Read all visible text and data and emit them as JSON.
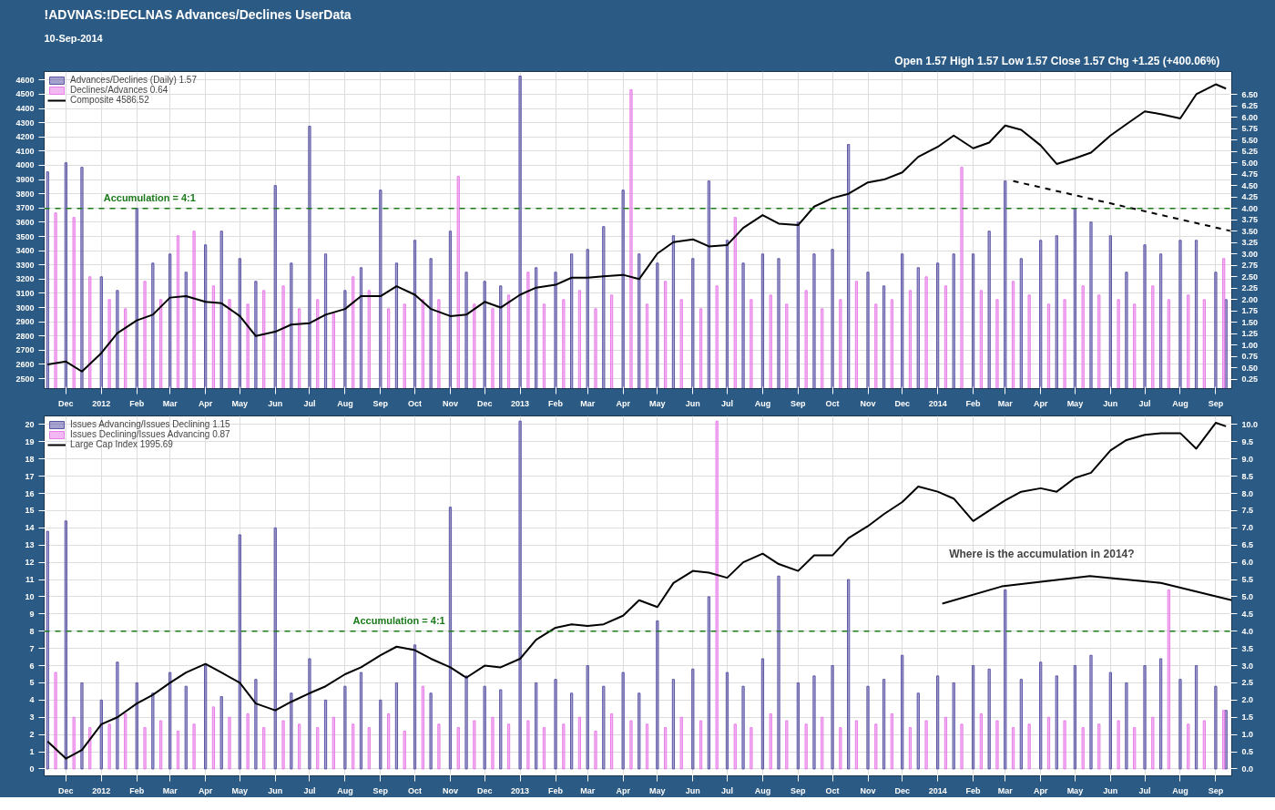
{
  "chart_data": [
    {
      "type": "bar",
      "title": "!ADVNAS:!DECLNAS  Advances/Declines  UserData",
      "subtitle": "10-Sep-2014",
      "annotations": [
        "Open 1.57  High 1.57  Low 1.57  Close 1.57  Chg +1.25 (+400.06%)"
      ],
      "xlim": [
        "2011-11-12",
        "2014-09-15"
      ],
      "xticks": [
        {
          "value": "2011-12-01",
          "label": "Dec"
        },
        {
          "value": "2012-01-01",
          "label": "2012"
        },
        {
          "value": "2012-02-01",
          "label": "Feb"
        },
        {
          "value": "2012-03-01",
          "label": "Mar"
        },
        {
          "value": "2012-04-01",
          "label": "Apr"
        },
        {
          "value": "2012-05-01",
          "label": "May"
        },
        {
          "value": "2012-06-01",
          "label": "Jun"
        },
        {
          "value": "2012-07-01",
          "label": "Jul"
        },
        {
          "value": "2012-08-01",
          "label": "Aug"
        },
        {
          "value": "2012-09-01",
          "label": "Sep"
        },
        {
          "value": "2012-10-01",
          "label": "Oct"
        },
        {
          "value": "2012-11-01",
          "label": "Nov"
        },
        {
          "value": "2012-12-01",
          "label": "Dec"
        },
        {
          "value": "2013-01-01",
          "label": "2013"
        },
        {
          "value": "2013-02-01",
          "label": "Feb"
        },
        {
          "value": "2013-03-01",
          "label": "Mar"
        },
        {
          "value": "2013-04-01",
          "label": "Apr"
        },
        {
          "value": "2013-05-01",
          "label": "May"
        },
        {
          "value": "2013-06-01",
          "label": "Jun"
        },
        {
          "value": "2013-07-01",
          "label": "Jul"
        },
        {
          "value": "2013-08-01",
          "label": "Aug"
        },
        {
          "value": "2013-09-01",
          "label": "Sep"
        },
        {
          "value": "2013-10-01",
          "label": "Oct"
        },
        {
          "value": "2013-11-01",
          "label": "Nov"
        },
        {
          "value": "2013-12-01",
          "label": "Dec"
        },
        {
          "value": "2014-01-01",
          "label": "2014"
        },
        {
          "value": "2014-02-01",
          "label": "Feb"
        },
        {
          "value": "2014-03-01",
          "label": "Mar"
        },
        {
          "value": "2014-04-01",
          "label": "Apr"
        },
        {
          "value": "2014-05-01",
          "label": "May"
        },
        {
          "value": "2014-06-01",
          "label": "Jun"
        },
        {
          "value": "2014-07-01",
          "label": "Jul"
        },
        {
          "value": "2014-08-01",
          "label": "Aug"
        },
        {
          "value": "2014-09-01",
          "label": "Sep"
        }
      ],
      "ylim": [
        2430,
        4660
      ],
      "yticks": [
        2500,
        2600,
        2700,
        2800,
        2900,
        3000,
        3100,
        3200,
        3300,
        3400,
        3500,
        3600,
        3700,
        3800,
        3900,
        4000,
        4100,
        4200,
        4300,
        4400,
        4500,
        4600
      ],
      "y2lim": [
        0.05,
        7.0
      ],
      "y2ticks": [
        {
          "value": 0.25,
          "label": "0.25"
        },
        {
          "value": 0.5,
          "label": "0.50"
        },
        {
          "value": 0.75,
          "label": "0.75"
        },
        {
          "value": 1.0,
          "label": "1.00"
        },
        {
          "value": 1.25,
          "label": "1.25"
        },
        {
          "value": 1.5,
          "label": "1.50"
        },
        {
          "value": 1.75,
          "label": "1.75"
        },
        {
          "value": 2.0,
          "label": "2.00"
        },
        {
          "value": 2.25,
          "label": "2.25"
        },
        {
          "value": 2.5,
          "label": "2.50"
        },
        {
          "value": 2.75,
          "label": "2.75"
        },
        {
          "value": 3.0,
          "label": "3.00"
        },
        {
          "value": 3.25,
          "label": "3.25"
        },
        {
          "value": 3.5,
          "label": "3.50"
        },
        {
          "value": 3.75,
          "label": "3.75"
        },
        {
          "value": 4.0,
          "label": "4.00"
        },
        {
          "value": 4.25,
          "label": "4.25"
        },
        {
          "value": 4.5,
          "label": "4.50"
        },
        {
          "value": 4.75,
          "label": "4.75"
        },
        {
          "value": 5.0,
          "label": "5.00"
        },
        {
          "value": 5.25,
          "label": "5.25"
        },
        {
          "value": 5.5,
          "label": "5.50"
        },
        {
          "value": 5.75,
          "label": "5.75"
        },
        {
          "value": 6.0,
          "label": "6.00"
        },
        {
          "value": 6.25,
          "label": "6.25"
        },
        {
          "value": 6.5,
          "label": "6.50"
        }
      ],
      "grid": true,
      "legend": "top left",
      "x": [
        "2011-11-15",
        "2011-12-01",
        "2011-12-15",
        "2012-01-01",
        "2012-01-15",
        "2012-02-01",
        "2012-02-15",
        "2012-03-01",
        "2012-03-15",
        "2012-04-01",
        "2012-04-15",
        "2012-05-01",
        "2012-05-15",
        "2012-06-01",
        "2012-06-15",
        "2012-07-01",
        "2012-07-15",
        "2012-08-01",
        "2012-08-15",
        "2012-09-01",
        "2012-09-15",
        "2012-10-01",
        "2012-10-15",
        "2012-11-01",
        "2012-11-15",
        "2012-12-01",
        "2012-12-15",
        "2013-01-01",
        "2013-01-15",
        "2013-02-01",
        "2013-02-15",
        "2013-03-01",
        "2013-03-15",
        "2013-04-01",
        "2013-04-15",
        "2013-05-01",
        "2013-05-15",
        "2013-06-01",
        "2013-06-15",
        "2013-07-01",
        "2013-07-15",
        "2013-08-01",
        "2013-08-15",
        "2013-09-01",
        "2013-09-15",
        "2013-10-01",
        "2013-10-15",
        "2013-11-01",
        "2013-11-15",
        "2013-12-01",
        "2013-12-15",
        "2014-01-01",
        "2014-01-15",
        "2014-02-01",
        "2014-02-15",
        "2014-03-01",
        "2014-03-15",
        "2014-04-01",
        "2014-04-15",
        "2014-05-01",
        "2014-05-15",
        "2014-06-01",
        "2014-06-15",
        "2014-07-01",
        "2014-07-15",
        "2014-08-01",
        "2014-08-15",
        "2014-09-01",
        "2014-09-10"
      ],
      "ref_lines": [
        {
          "axis": "y2",
          "value": 4.0,
          "label": "Accumulation = 4:1",
          "color": "#1a7a1a",
          "line_style": "dashed"
        }
      ],
      "series": [
        {
          "name": "Advances/Declines (Daily) 1.57",
          "axis": "y2",
          "color": "#5b55a6",
          "values": [
            4.8,
            5.0,
            4.9,
            2.5,
            2.2,
            4.0,
            2.8,
            3.0,
            2.6,
            3.2,
            3.5,
            2.9,
            2.4,
            4.5,
            2.8,
            5.8,
            3.0,
            2.2,
            2.7,
            4.4,
            2.8,
            3.3,
            2.9,
            3.5,
            2.6,
            2.4,
            2.3,
            6.9,
            2.7,
            2.6,
            3.0,
            3.1,
            3.6,
            4.4,
            3.0,
            2.8,
            3.4,
            2.9,
            4.6,
            3.3,
            2.8,
            3.0,
            2.9,
            3.7,
            3.0,
            3.1,
            5.4,
            2.6,
            2.3,
            3.0,
            2.7,
            2.8,
            3.0,
            3.0,
            3.5,
            4.6,
            2.9,
            3.3,
            3.4,
            4.0,
            3.7,
            3.4,
            2.6,
            3.2,
            3.0,
            3.3,
            3.3,
            2.6,
            2.0
          ]
        },
        {
          "name": "Declines/Advances 0.64",
          "axis": "y2",
          "color": "#e87de8",
          "x": [
            "2011-11-22",
            "2011-12-08",
            "2011-12-22",
            "2012-01-08",
            "2012-01-22",
            "2012-02-08",
            "2012-02-22",
            "2012-03-08",
            "2012-03-22",
            "2012-04-08",
            "2012-04-22",
            "2012-05-08",
            "2012-05-22",
            "2012-06-08",
            "2012-06-22",
            "2012-07-08",
            "2012-07-22",
            "2012-08-08",
            "2012-08-22",
            "2012-09-08",
            "2012-09-22",
            "2012-10-08",
            "2012-10-22",
            "2012-11-08",
            "2012-11-22",
            "2012-12-08",
            "2012-12-22",
            "2013-01-08",
            "2013-01-22",
            "2013-02-08",
            "2013-02-22",
            "2013-03-08",
            "2013-03-22",
            "2013-04-08",
            "2013-04-22",
            "2013-05-08",
            "2013-05-22",
            "2013-06-08",
            "2013-06-22",
            "2013-07-08",
            "2013-07-22",
            "2013-08-08",
            "2013-08-22",
            "2013-09-08",
            "2013-09-22",
            "2013-10-08",
            "2013-10-22",
            "2013-11-08",
            "2013-11-22",
            "2013-12-08",
            "2013-12-22",
            "2014-01-08",
            "2014-01-22",
            "2014-02-08",
            "2014-02-22",
            "2014-03-08",
            "2014-03-22",
            "2014-04-08",
            "2014-04-22",
            "2014-05-08",
            "2014-05-22",
            "2014-06-08",
            "2014-06-22",
            "2014-07-08",
            "2014-07-22",
            "2014-08-08",
            "2014-08-22",
            "2014-09-08"
          ],
          "values": [
            3.9,
            3.8,
            2.5,
            2.0,
            1.8,
            2.4,
            2.0,
            3.4,
            3.5,
            2.3,
            2.0,
            1.9,
            2.2,
            2.3,
            1.8,
            2.0,
            1.7,
            2.5,
            2.2,
            1.8,
            1.9,
            2.0,
            2.0,
            4.7,
            1.9,
            1.8,
            2.1,
            2.6,
            1.9,
            2.0,
            2.2,
            1.8,
            2.1,
            6.6,
            1.9,
            2.4,
            2.0,
            1.8,
            2.3,
            3.8,
            2.0,
            2.1,
            1.9,
            2.2,
            1.8,
            2.0,
            2.4,
            1.9,
            2.0,
            2.2,
            2.5,
            2.3,
            4.9,
            2.2,
            2.0,
            2.4,
            2.1,
            1.9,
            2.0,
            2.3,
            2.1,
            2.0,
            1.9,
            2.3,
            2.0,
            2.1,
            2.0,
            2.9
          ]
        },
        {
          "name": "Composite 4586.52",
          "type": "line",
          "axis": "y",
          "color": "#000000",
          "values": [
            2600,
            2620,
            2550,
            2680,
            2820,
            2910,
            2950,
            3070,
            3080,
            3040,
            3030,
            2940,
            2800,
            2830,
            2880,
            2890,
            2950,
            2990,
            3080,
            3080,
            3150,
            3090,
            2990,
            2940,
            2950,
            3040,
            3000,
            3090,
            3140,
            3160,
            3210,
            3210,
            3220,
            3230,
            3200,
            3380,
            3460,
            3480,
            3430,
            3440,
            3560,
            3650,
            3590,
            3580,
            3710,
            3770,
            3800,
            3880,
            3900,
            3950,
            4060,
            4130,
            4210,
            4120,
            4160,
            4280,
            4250,
            4140,
            4010,
            4050,
            4090,
            4210,
            4290,
            4380,
            4360,
            4330,
            4500,
            4570,
            4540
          ]
        },
        {
          "type": "line",
          "axis": "y2",
          "color": "#000000",
          "line_style": "dashed",
          "x": [
            "2014-03-08",
            "2014-09-15"
          ],
          "values": [
            4.6,
            3.5
          ]
        }
      ]
    },
    {
      "type": "bar",
      "annotations": [
        "Where is the accumulation in 2014?"
      ],
      "xlim": [
        "2011-11-12",
        "2014-09-15"
      ],
      "xticks": [
        {
          "value": "2011-12-01",
          "label": "Dec"
        },
        {
          "value": "2012-01-01",
          "label": "2012"
        },
        {
          "value": "2012-02-01",
          "label": "Feb"
        },
        {
          "value": "2012-03-01",
          "label": "Mar"
        },
        {
          "value": "2012-04-01",
          "label": "Apr"
        },
        {
          "value": "2012-05-01",
          "label": "May"
        },
        {
          "value": "2012-06-01",
          "label": "Jun"
        },
        {
          "value": "2012-07-01",
          "label": "Jul"
        },
        {
          "value": "2012-08-01",
          "label": "Aug"
        },
        {
          "value": "2012-09-01",
          "label": "Sep"
        },
        {
          "value": "2012-10-01",
          "label": "Oct"
        },
        {
          "value": "2012-11-01",
          "label": "Nov"
        },
        {
          "value": "2012-12-01",
          "label": "Dec"
        },
        {
          "value": "2013-01-01",
          "label": "2013"
        },
        {
          "value": "2013-02-01",
          "label": "Feb"
        },
        {
          "value": "2013-03-01",
          "label": "Mar"
        },
        {
          "value": "2013-04-01",
          "label": "Apr"
        },
        {
          "value": "2013-05-01",
          "label": "May"
        },
        {
          "value": "2013-06-01",
          "label": "Jun"
        },
        {
          "value": "2013-07-01",
          "label": "Jul"
        },
        {
          "value": "2013-08-01",
          "label": "Aug"
        },
        {
          "value": "2013-09-01",
          "label": "Sep"
        },
        {
          "value": "2013-10-01",
          "label": "Oct"
        },
        {
          "value": "2013-11-01",
          "label": "Nov"
        },
        {
          "value": "2013-12-01",
          "label": "Dec"
        },
        {
          "value": "2014-01-01",
          "label": "2014"
        },
        {
          "value": "2014-02-01",
          "label": "Feb"
        },
        {
          "value": "2014-03-01",
          "label": "Mar"
        },
        {
          "value": "2014-04-01",
          "label": "Apr"
        },
        {
          "value": "2014-05-01",
          "label": "May"
        },
        {
          "value": "2014-06-01",
          "label": "Jun"
        },
        {
          "value": "2014-07-01",
          "label": "Jul"
        },
        {
          "value": "2014-08-01",
          "label": "Aug"
        },
        {
          "value": "2014-09-01",
          "label": "Sep"
        }
      ],
      "ylim": [
        -0.4,
        20.5
      ],
      "yticks": [
        0,
        1,
        2,
        3,
        4,
        5,
        6,
        7,
        8,
        9,
        10,
        11,
        12,
        13,
        14,
        15,
        16,
        17,
        18,
        19,
        20
      ],
      "y2lim": [
        -0.2,
        10.25
      ],
      "y2ticks": [
        {
          "value": 0,
          "label": "0.0"
        },
        {
          "value": 0.5,
          "label": "0.5"
        },
        {
          "value": 1,
          "label": "1.0"
        },
        {
          "value": 1.5,
          "label": "1.5"
        },
        {
          "value": 2,
          "label": "2.0"
        },
        {
          "value": 2.5,
          "label": "2.5"
        },
        {
          "value": 3,
          "label": "3.0"
        },
        {
          "value": 3.5,
          "label": "3.5"
        },
        {
          "value": 4,
          "label": "4.0"
        },
        {
          "value": 4.5,
          "label": "4.5"
        },
        {
          "value": 5,
          "label": "5.0"
        },
        {
          "value": 5.5,
          "label": "5.5"
        },
        {
          "value": 6,
          "label": "6.0"
        },
        {
          "value": 6.5,
          "label": "6.5"
        },
        {
          "value": 7,
          "label": "7.0"
        },
        {
          "value": 7.5,
          "label": "7.5"
        },
        {
          "value": 8,
          "label": "8.0"
        },
        {
          "value": 8.5,
          "label": "8.5"
        },
        {
          "value": 9,
          "label": "9.0"
        },
        {
          "value": 9.5,
          "label": "9.5"
        },
        {
          "value": 10,
          "label": "10.0"
        }
      ],
      "grid": true,
      "legend": "top left",
      "x": [
        "2011-11-15",
        "2011-12-01",
        "2011-12-15",
        "2012-01-01",
        "2012-01-15",
        "2012-02-01",
        "2012-02-15",
        "2012-03-01",
        "2012-03-15",
        "2012-04-01",
        "2012-04-15",
        "2012-05-01",
        "2012-05-15",
        "2012-06-01",
        "2012-06-15",
        "2012-07-01",
        "2012-07-15",
        "2012-08-01",
        "2012-08-15",
        "2012-09-01",
        "2012-09-15",
        "2012-10-01",
        "2012-10-15",
        "2012-11-01",
        "2012-11-15",
        "2012-12-01",
        "2012-12-15",
        "2013-01-01",
        "2013-01-15",
        "2013-02-01",
        "2013-02-15",
        "2013-03-01",
        "2013-03-15",
        "2013-04-01",
        "2013-04-15",
        "2013-05-01",
        "2013-05-15",
        "2013-06-01",
        "2013-06-15",
        "2013-07-01",
        "2013-07-15",
        "2013-08-01",
        "2013-08-15",
        "2013-09-01",
        "2013-09-15",
        "2013-10-01",
        "2013-10-15",
        "2013-11-01",
        "2013-11-15",
        "2013-12-01",
        "2013-12-15",
        "2014-01-01",
        "2014-01-15",
        "2014-02-01",
        "2014-02-15",
        "2014-03-01",
        "2014-03-15",
        "2014-04-01",
        "2014-04-15",
        "2014-05-01",
        "2014-05-15",
        "2014-06-01",
        "2014-06-15",
        "2014-07-01",
        "2014-07-15",
        "2014-08-01",
        "2014-08-15",
        "2014-09-01",
        "2014-09-10"
      ],
      "ref_lines": [
        {
          "axis": "y2",
          "value": 4.0,
          "label": "Accumulation = 4:1",
          "color": "#1a7a1a",
          "line_style": "dashed"
        }
      ],
      "series": [
        {
          "name": "Issues Advancing/Issues Declining 1.15",
          "axis": "y2",
          "color": "#5b55a6",
          "values": [
            6.9,
            7.2,
            2.5,
            2.0,
            3.1,
            2.5,
            2.2,
            2.8,
            2.4,
            3.0,
            2.1,
            6.8,
            2.6,
            7.0,
            2.2,
            3.2,
            2.0,
            2.4,
            2.8,
            2.0,
            2.5,
            3.6,
            2.2,
            7.6,
            2.7,
            2.4,
            2.3,
            10.1,
            2.5,
            2.6,
            2.2,
            3.0,
            2.4,
            2.8,
            2.2,
            4.3,
            2.6,
            2.9,
            5.0,
            2.8,
            2.4,
            3.2,
            5.6,
            2.5,
            2.7,
            3.0,
            5.5,
            2.4,
            2.6,
            3.3,
            2.2,
            2.7,
            2.5,
            3.0,
            2.9,
            5.2,
            2.6,
            3.1,
            2.7,
            3.0,
            3.3,
            2.8,
            2.5,
            3.0,
            3.2,
            2.6,
            3.0,
            2.4,
            1.7
          ]
        },
        {
          "name": "Issues Declining/Issues Advancing 0.87",
          "axis": "y2",
          "color": "#e87de8",
          "x": [
            "2011-11-22",
            "2011-12-08",
            "2011-12-22",
            "2012-01-08",
            "2012-01-22",
            "2012-02-08",
            "2012-02-22",
            "2012-03-08",
            "2012-03-22",
            "2012-04-08",
            "2012-04-22",
            "2012-05-08",
            "2012-05-22",
            "2012-06-08",
            "2012-06-22",
            "2012-07-08",
            "2012-07-22",
            "2012-08-08",
            "2012-08-22",
            "2012-09-08",
            "2012-09-22",
            "2012-10-08",
            "2012-10-22",
            "2012-11-08",
            "2012-11-22",
            "2012-12-08",
            "2012-12-22",
            "2013-01-08",
            "2013-01-22",
            "2013-02-08",
            "2013-02-22",
            "2013-03-08",
            "2013-03-22",
            "2013-04-08",
            "2013-04-22",
            "2013-05-08",
            "2013-05-22",
            "2013-06-08",
            "2013-06-22",
            "2013-07-08",
            "2013-07-22",
            "2013-08-08",
            "2013-08-22",
            "2013-09-08",
            "2013-09-22",
            "2013-10-08",
            "2013-10-22",
            "2013-11-08",
            "2013-11-22",
            "2013-12-08",
            "2013-12-22",
            "2014-01-08",
            "2014-01-22",
            "2014-02-08",
            "2014-02-22",
            "2014-03-08",
            "2014-03-22",
            "2014-04-08",
            "2014-04-22",
            "2014-05-08",
            "2014-05-22",
            "2014-06-08",
            "2014-06-22",
            "2014-07-08",
            "2014-07-22",
            "2014-08-08",
            "2014-08-22",
            "2014-09-08"
          ],
          "values": [
            2.8,
            1.5,
            1.2,
            1.3,
            1.6,
            1.2,
            1.4,
            1.1,
            1.3,
            1.8,
            1.5,
            1.6,
            1.2,
            1.4,
            1.3,
            1.2,
            1.5,
            1.3,
            1.2,
            1.6,
            1.1,
            2.4,
            1.3,
            1.2,
            1.4,
            1.5,
            1.3,
            1.4,
            1.2,
            1.3,
            1.5,
            1.1,
            1.6,
            1.4,
            1.3,
            1.2,
            1.5,
            1.4,
            10.1,
            1.3,
            1.2,
            1.6,
            1.4,
            1.3,
            1.5,
            1.2,
            1.4,
            1.3,
            1.6,
            1.2,
            1.4,
            1.5,
            1.3,
            1.6,
            1.4,
            1.2,
            1.3,
            1.5,
            1.4,
            1.2,
            1.3,
            1.4,
            1.2,
            1.5,
            5.2,
            1.3,
            1.4,
            1.7
          ]
        },
        {
          "name": "Large Cap Index 1995.69",
          "type": "line",
          "axis": "y",
          "color": "#000000",
          "values": [
            1.6,
            0.6,
            1.1,
            2.6,
            3.0,
            3.8,
            4.3,
            5.0,
            5.6,
            6.1,
            5.6,
            5.0,
            3.8,
            3.4,
            3.9,
            4.4,
            4.8,
            5.5,
            5.9,
            6.6,
            7.1,
            6.9,
            6.4,
            5.9,
            5.3,
            6.0,
            5.9,
            6.4,
            7.5,
            8.2,
            8.4,
            8.3,
            8.4,
            8.9,
            9.8,
            9.4,
            10.8,
            11.5,
            11.4,
            11.1,
            12.0,
            12.5,
            11.9,
            11.5,
            12.4,
            12.4,
            13.4,
            14.1,
            14.8,
            15.5,
            16.4,
            16.1,
            15.7,
            14.4,
            15.0,
            15.6,
            16.1,
            16.3,
            16.1,
            16.9,
            17.2,
            18.5,
            19.1,
            19.4,
            19.5,
            19.5,
            18.6,
            20.1,
            19.9
          ]
        },
        {
          "type": "line",
          "axis": "y2",
          "color": "#000000",
          "x": [
            "2014-01-05",
            "2014-02-26",
            "2014-05-14",
            "2014-07-15",
            "2014-09-15"
          ],
          "values": [
            4.8,
            5.3,
            5.6,
            5.4,
            4.9
          ]
        }
      ]
    }
  ]
}
